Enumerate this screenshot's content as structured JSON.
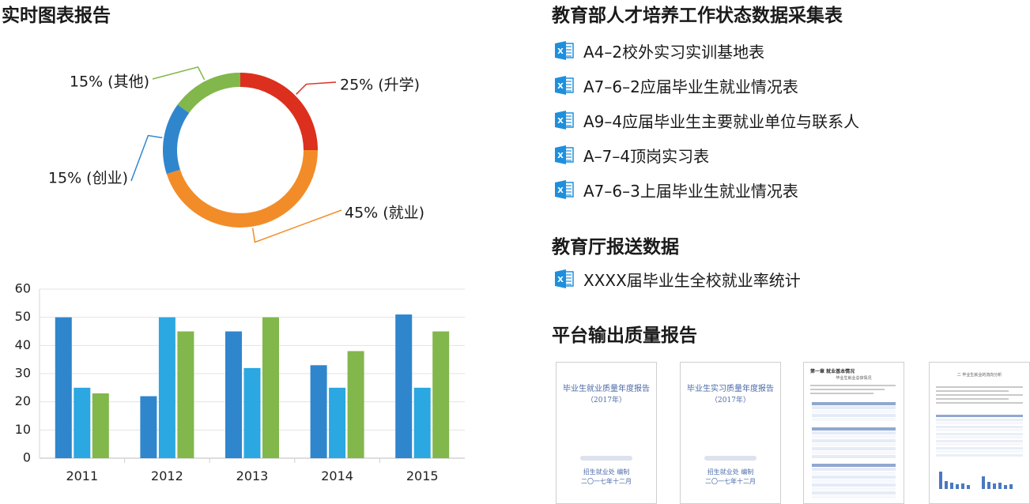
{
  "left_title": "实时图表报告",
  "right_title": "教育部人才培养工作状态数据采集表",
  "files_1": [
    {
      "label": "A4–2校外实习实训基地表"
    },
    {
      "label": "A7–6–2应届毕业生就业情况表"
    },
    {
      "label": "A9–4应届毕业生主要就业单位与联系人"
    },
    {
      "label": "A–7–4顶岗实习表"
    },
    {
      "label": "A7–6–3上届毕业生就业情况表"
    }
  ],
  "sub_title_1": "教育厅报送数据",
  "files_2": [
    {
      "label": "XXXX届毕业生全校就业率统计"
    }
  ],
  "sub_title_2": "平台输出质量报告",
  "icon": "excel-icon",
  "chart_data": [
    {
      "type": "pie",
      "donut": true,
      "slices": [
        {
          "name": "升学",
          "value": 25,
          "label": "25% (升学)",
          "color": "#dc2f1e"
        },
        {
          "name": "就业",
          "value": 45,
          "label": "45% (就业)",
          "color": "#f28c28"
        },
        {
          "name": "创业",
          "value": 15,
          "label": "15% (创业)",
          "color": "#2f86cd"
        },
        {
          "name": "其他",
          "value": 15,
          "label": "15% (其他)",
          "color": "#82b74b"
        }
      ]
    },
    {
      "type": "bar",
      "categories": [
        "2011",
        "2012",
        "2013",
        "2014",
        "2015"
      ],
      "series": [
        {
          "values": [
            50,
            22,
            45,
            33,
            51
          ],
          "color": "#2f86cd"
        },
        {
          "values": [
            25,
            50,
            32,
            25,
            25
          ],
          "color": "#2ba7e2"
        },
        {
          "values": [
            23,
            45,
            50,
            38,
            45
          ],
          "color": "#82b74b"
        }
      ],
      "ylim": [
        0,
        60
      ],
      "yticks": [
        0,
        10,
        20,
        30,
        40,
        50,
        60
      ],
      "grid": true
    }
  ],
  "reports": [
    {
      "type": "cover",
      "title": "毕业生就业质量年度报告",
      "year": "（2017年）",
      "issuer": "招生就业处 编制",
      "date": "二〇一七年十二月"
    },
    {
      "type": "cover",
      "title": "毕业生实习质量年度报告",
      "year": "（2017年）",
      "issuer": "招生就业处 编制",
      "date": "二〇一七年十二月"
    },
    {
      "type": "table",
      "heading": "第一章  就业基本情况",
      "subheading": "毕业生就业总体情况"
    },
    {
      "type": "chart",
      "heading": "二  毕业生就业的流向分析"
    }
  ]
}
